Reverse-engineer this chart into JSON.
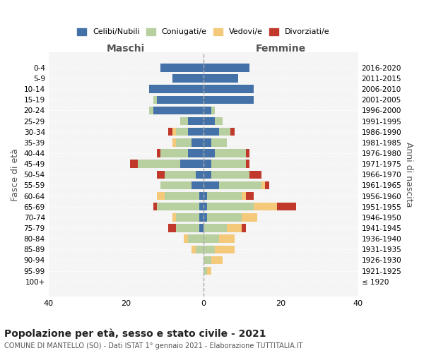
{
  "age_groups": [
    "100+",
    "95-99",
    "90-94",
    "85-89",
    "80-84",
    "75-79",
    "70-74",
    "65-69",
    "60-64",
    "55-59",
    "50-54",
    "45-49",
    "40-44",
    "35-39",
    "30-34",
    "25-29",
    "20-24",
    "15-19",
    "10-14",
    "5-9",
    "0-4"
  ],
  "birth_years": [
    "≤ 1920",
    "1921-1925",
    "1926-1930",
    "1931-1935",
    "1936-1940",
    "1941-1945",
    "1946-1950",
    "1951-1955",
    "1956-1960",
    "1961-1965",
    "1966-1970",
    "1971-1975",
    "1976-1980",
    "1981-1985",
    "1986-1990",
    "1991-1995",
    "1996-2000",
    "2001-2005",
    "2006-2010",
    "2011-2015",
    "2016-2020"
  ],
  "maschi": {
    "celibi": [
      0,
      0,
      0,
      0,
      0,
      1,
      1,
      1,
      1,
      3,
      2,
      6,
      4,
      3,
      4,
      4,
      13,
      12,
      14,
      8,
      11
    ],
    "coniugati": [
      0,
      0,
      0,
      2,
      4,
      6,
      6,
      11,
      9,
      8,
      8,
      11,
      7,
      4,
      3,
      2,
      1,
      1,
      0,
      0,
      0
    ],
    "vedovi": [
      0,
      0,
      0,
      1,
      1,
      0,
      1,
      0,
      2,
      0,
      0,
      0,
      0,
      1,
      1,
      0,
      0,
      0,
      0,
      0,
      0
    ],
    "divorziati": [
      0,
      0,
      0,
      0,
      0,
      2,
      0,
      1,
      0,
      0,
      2,
      2,
      1,
      0,
      1,
      0,
      0,
      0,
      0,
      0,
      0
    ]
  },
  "femmine": {
    "nubili": [
      0,
      0,
      0,
      0,
      0,
      0,
      1,
      1,
      1,
      4,
      2,
      2,
      3,
      2,
      4,
      3,
      2,
      13,
      13,
      9,
      12
    ],
    "coniugate": [
      0,
      1,
      2,
      3,
      4,
      6,
      9,
      12,
      9,
      11,
      10,
      9,
      8,
      4,
      3,
      2,
      1,
      0,
      0,
      0,
      0
    ],
    "vedove": [
      0,
      1,
      3,
      5,
      4,
      4,
      4,
      6,
      1,
      1,
      0,
      0,
      0,
      0,
      0,
      0,
      0,
      0,
      0,
      0,
      0
    ],
    "divorziate": [
      0,
      0,
      0,
      0,
      0,
      1,
      0,
      5,
      2,
      1,
      3,
      1,
      1,
      0,
      1,
      0,
      0,
      0,
      0,
      0,
      0
    ]
  },
  "colors": {
    "celibi": "#4472a8",
    "coniugati": "#b8cfa0",
    "vedovi": "#f5c97a",
    "divorziati": "#c0392b"
  },
  "xlim": 40,
  "title": "Popolazione per età, sesso e stato civile - 2021",
  "subtitle": "COMUNE DI MANTELLO (SO) - Dati ISTAT 1° gennaio 2021 - Elaborazione TUTTITALIA.IT",
  "ylabel_left": "Fasce di età",
  "ylabel_right": "Anni di nascita",
  "xlabel_maschi": "Maschi",
  "xlabel_femmine": "Femmine",
  "background_color": "#f5f5f5"
}
